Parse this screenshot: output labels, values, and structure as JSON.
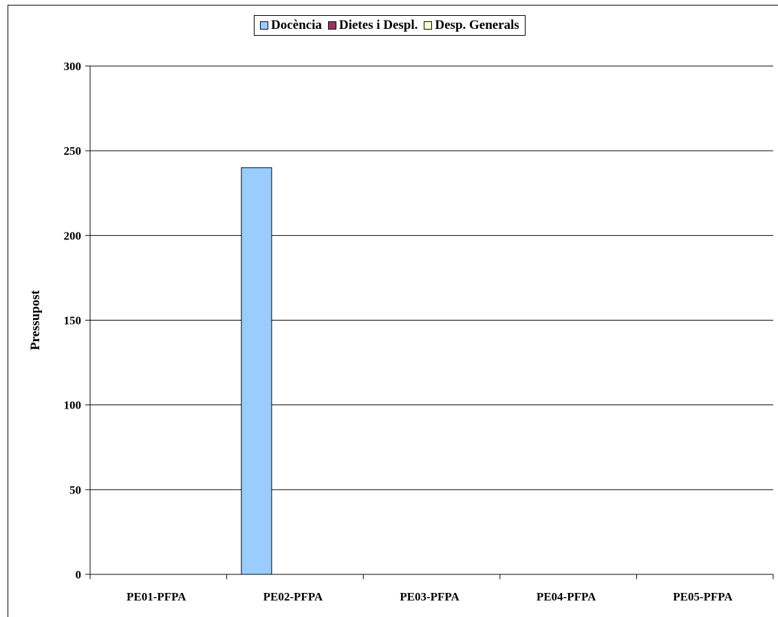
{
  "chart_data": {
    "type": "bar",
    "title": "",
    "xlabel": "",
    "ylabel": "Pressupost",
    "ylim": [
      0,
      300
    ],
    "yticks": [
      0,
      50,
      100,
      150,
      200,
      250,
      300
    ],
    "grid": true,
    "legend_position": "top-center",
    "categories": [
      "PE01-PFPA",
      "PE02-PFPA",
      "PE03-PFPA",
      "PE04-PFPA",
      "PE05-PFPA"
    ],
    "series": [
      {
        "name": "Docència",
        "color": "#99ccff",
        "values": [
          0,
          240,
          0,
          0,
          0
        ]
      },
      {
        "name": "Dietes i Despl.",
        "color": "#993366",
        "values": [
          0,
          0,
          0,
          0,
          0
        ]
      },
      {
        "name": "Desp. Generals",
        "color": "#ffffcc",
        "values": [
          0,
          0,
          0,
          0,
          0
        ]
      }
    ]
  }
}
